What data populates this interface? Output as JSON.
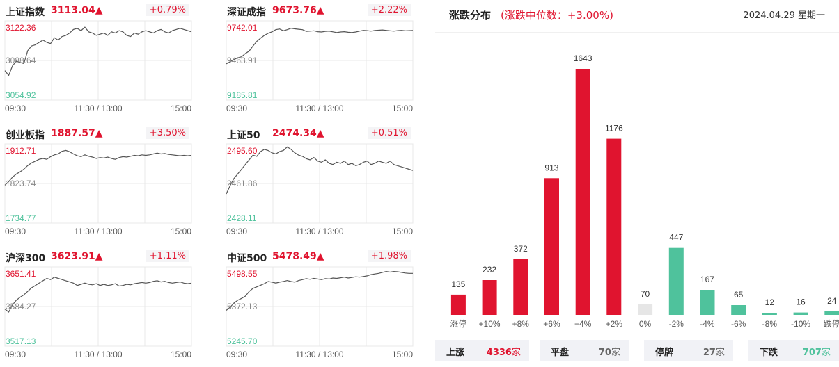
{
  "colors": {
    "up": "#e0142f",
    "down": "#4fc29c",
    "flat": "#e6e6e6",
    "line": "#555555",
    "grid": "#e8e8e8"
  },
  "panels": [
    {
      "name": "上证指数",
      "value": "3113.04▲",
      "change": "+0.79%",
      "high": "3122.36",
      "mid": "3088.64",
      "low": "3054.92",
      "t_open": "09:30",
      "t_mid": "11:30 / 13:00",
      "t_close": "15:00",
      "series": [
        3080,
        3076,
        3084,
        3088,
        3087,
        3086,
        3097,
        3101,
        3102,
        3104,
        3106,
        3104,
        3103,
        3108,
        3106,
        3109,
        3110,
        3112,
        3115,
        3116,
        3114,
        3117,
        3113,
        3112,
        3110,
        3111,
        3112,
        3110,
        3113,
        3112,
        3114,
        3113,
        3110,
        3109,
        3112,
        3111,
        3113,
        3114,
        3113,
        3112,
        3114,
        3115,
        3113,
        3112,
        3114,
        3115,
        3116,
        3115,
        3114,
        3113
      ]
    },
    {
      "name": "深证成指",
      "value": "9673.76▲",
      "change": "+2.22%",
      "high": "9742.01",
      "mid": "9463.91",
      "low": "9185.81",
      "t_open": "09:30",
      "t_mid": "11:30 / 13:00",
      "t_close": "15:00",
      "series": [
        9440,
        9455,
        9470,
        9483,
        9490,
        9512,
        9530,
        9565,
        9598,
        9620,
        9640,
        9655,
        9665,
        9680,
        9685,
        9672,
        9680,
        9690,
        9686,
        9683,
        9680,
        9668,
        9670,
        9672,
        9666,
        9664,
        9668,
        9670,
        9665,
        9660,
        9664,
        9666,
        9662,
        9660,
        9664,
        9670,
        9675,
        9673,
        9670,
        9674,
        9676,
        9678,
        9675,
        9672,
        9670,
        9673,
        9675,
        9672,
        9673,
        9674
      ]
    },
    {
      "name": "创业板指",
      "value": "1887.57▲",
      "change": "+3.50%",
      "high": "1912.71",
      "mid": "1823.74",
      "low": "1734.77",
      "t_open": "09:30",
      "t_mid": "11:30 / 13:00",
      "t_close": "15:00",
      "series": [
        1820,
        1828,
        1838,
        1845,
        1850,
        1856,
        1864,
        1870,
        1874,
        1878,
        1880,
        1878,
        1884,
        1888,
        1890,
        1896,
        1898,
        1895,
        1890,
        1886,
        1884,
        1888,
        1885,
        1883,
        1880,
        1882,
        1881,
        1883,
        1880,
        1878,
        1882,
        1884,
        1883,
        1885,
        1887,
        1886,
        1888,
        1887,
        1888,
        1890,
        1892,
        1890,
        1891,
        1889,
        1888,
        1887,
        1886,
        1887,
        1886,
        1887
      ]
    },
    {
      "name": "上证50",
      "value": "2474.34▲",
      "change": "+0.51%",
      "high": "2495.60",
      "mid": "2461.86",
      "low": "2428.11",
      "t_open": "09:30",
      "t_mid": "11:30 / 13:00",
      "t_close": "15:00",
      "series": [
        2453,
        2460,
        2466,
        2470,
        2474,
        2478,
        2482,
        2486,
        2485,
        2489,
        2491,
        2490,
        2488,
        2487,
        2489,
        2490,
        2493,
        2491,
        2488,
        2486,
        2485,
        2483,
        2482,
        2484,
        2481,
        2480,
        2482,
        2479,
        2478,
        2480,
        2479,
        2481,
        2478,
        2479,
        2477,
        2478,
        2480,
        2481,
        2478,
        2479,
        2481,
        2480,
        2479,
        2481,
        2478,
        2477,
        2476,
        2475,
        2474,
        2473
      ]
    },
    {
      "name": "沪深300",
      "value": "3623.91▲",
      "change": "+1.11%",
      "high": "3651.41",
      "mid": "3584.27",
      "low": "3517.13",
      "t_open": "09:30",
      "t_mid": "11:30 / 13:00",
      "t_close": "15:00",
      "series": [
        3580,
        3575,
        3587,
        3595,
        3600,
        3604,
        3610,
        3616,
        3620,
        3624,
        3628,
        3632,
        3630,
        3634,
        3632,
        3630,
        3628,
        3626,
        3624,
        3620,
        3622,
        3624,
        3622,
        3621,
        3623,
        3620,
        3622,
        3620,
        3621,
        3623,
        3619,
        3620,
        3622,
        3621,
        3623,
        3624,
        3625,
        3624,
        3625,
        3627,
        3628,
        3626,
        3627,
        3625,
        3624,
        3625,
        3626,
        3624,
        3623,
        3624
      ]
    },
    {
      "name": "中证500",
      "value": "5478.49▲",
      "change": "+1.98%",
      "high": "5498.55",
      "mid": "5372.13",
      "low": "5245.70",
      "t_open": "09:30",
      "t_mid": "11:30 / 13:00",
      "t_close": "15:00",
      "series": [
        5360,
        5370,
        5383,
        5392,
        5398,
        5405,
        5420,
        5430,
        5435,
        5440,
        5445,
        5452,
        5450,
        5447,
        5450,
        5452,
        5455,
        5452,
        5450,
        5455,
        5458,
        5461,
        5459,
        5462,
        5460,
        5458,
        5461,
        5460,
        5463,
        5462,
        5464,
        5466,
        5463,
        5465,
        5467,
        5466,
        5468,
        5470,
        5474,
        5476,
        5478,
        5481,
        5484,
        5482,
        5484,
        5483,
        5481,
        5479,
        5478,
        5478
      ]
    }
  ],
  "dist": {
    "title": "涨跌分布",
    "subtitle": "(涨跌中位数：+3.00%)",
    "date": "2024.04.29 星期一"
  },
  "chart_data": {
    "type": "bar",
    "categories": [
      "涨停",
      "+10%",
      "+8%",
      "+6%",
      "+4%",
      "+2%",
      "0%",
      "-2%",
      "-4%",
      "-6%",
      "-8%",
      "-10%",
      "跌停"
    ],
    "values": [
      135,
      232,
      372,
      913,
      1643,
      1176,
      70,
      447,
      167,
      65,
      12,
      16,
      24
    ],
    "bar_colors": [
      "up",
      "up",
      "up",
      "up",
      "up",
      "up",
      "flat",
      "down",
      "down",
      "down",
      "down",
      "down",
      "down"
    ],
    "title": "涨跌分布"
  },
  "stats": [
    {
      "label": "上涨",
      "value": "4336",
      "unit": "家",
      "color": "up"
    },
    {
      "label": "平盘",
      "value": "70",
      "unit": "家",
      "color": "gray"
    },
    {
      "label": "停牌",
      "value": "27",
      "unit": "家",
      "color": "gray"
    },
    {
      "label": "下跌",
      "value": "707",
      "unit": "家",
      "color": "down"
    }
  ]
}
